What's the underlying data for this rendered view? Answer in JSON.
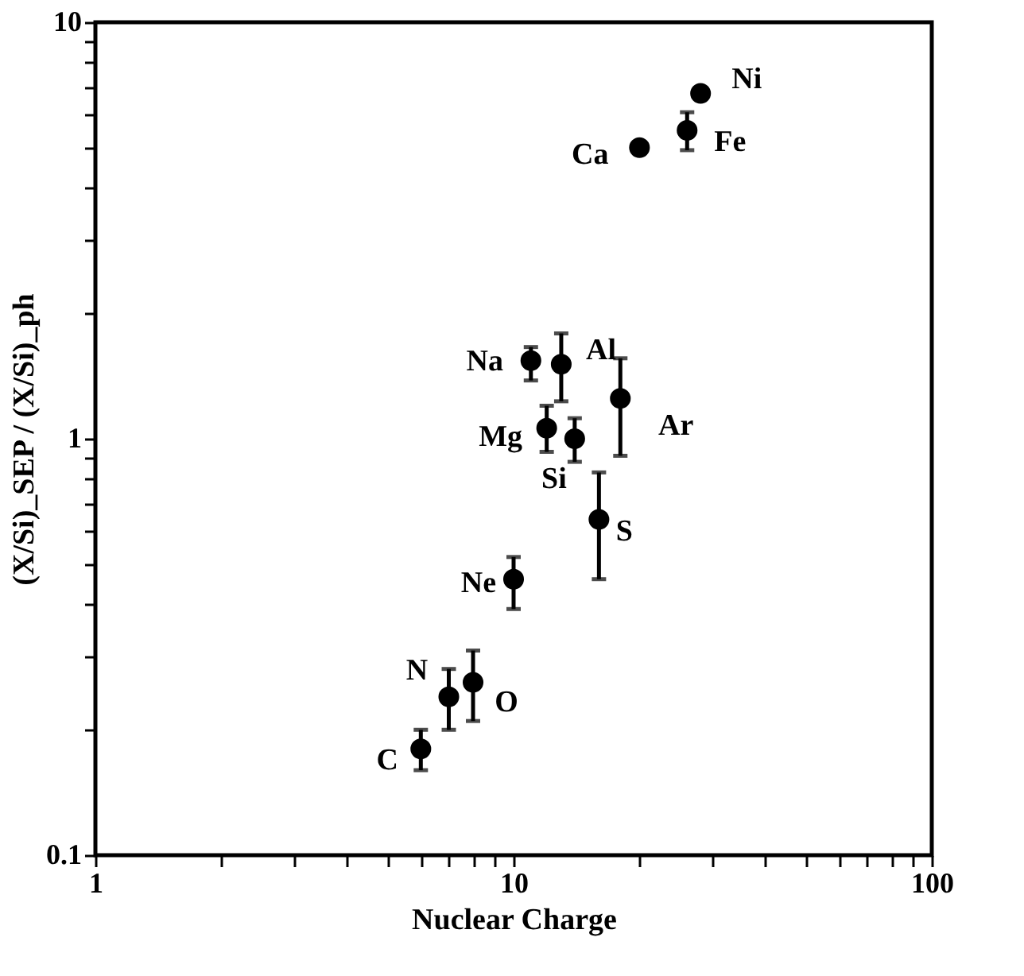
{
  "chart_data": {
    "type": "scatter",
    "xlabel": "Nuclear Charge",
    "ylabel": "(X/Si)_SEP / (X/Si)_ph",
    "log": "xy",
    "grid": false,
    "marker": "circle",
    "xlim": [
      1,
      100
    ],
    "ylim": [
      0.1,
      10
    ],
    "xticks": [
      1,
      {
        "value": 2,
        "label": null
      },
      {
        "value": 3,
        "label": null
      },
      {
        "value": 4,
        "label": null
      },
      {
        "value": 5,
        "label": null
      },
      {
        "value": 6,
        "label": null
      },
      {
        "value": 7,
        "label": null
      },
      {
        "value": 8,
        "label": null
      },
      {
        "value": 9,
        "label": null
      },
      10,
      {
        "value": 20,
        "label": null
      },
      {
        "value": 30,
        "label": null
      },
      {
        "value": 40,
        "label": null
      },
      {
        "value": 50,
        "label": null
      },
      {
        "value": 60,
        "label": null
      },
      {
        "value": 70,
        "label": null
      },
      {
        "value": 80,
        "label": null
      },
      {
        "value": 90,
        "label": null
      },
      100
    ],
    "yticks": [
      0.1,
      {
        "value": 0.2,
        "label": null
      },
      {
        "value": 0.3,
        "label": null
      },
      {
        "value": 0.4,
        "label": null
      },
      {
        "value": 0.5,
        "label": null
      },
      {
        "value": 0.6,
        "label": null
      },
      {
        "value": 0.7,
        "label": null
      },
      {
        "value": 0.8,
        "label": null
      },
      {
        "value": 0.9,
        "label": null
      },
      1,
      {
        "value": 2,
        "label": null
      },
      {
        "value": 3,
        "label": null
      },
      {
        "value": 4,
        "label": null
      },
      {
        "value": 5,
        "label": null
      },
      {
        "value": 6,
        "label": null
      },
      {
        "value": 7,
        "label": null
      },
      {
        "value": 8,
        "label": null
      },
      {
        "value": 9,
        "label": null
      },
      10
    ],
    "series": [
      {
        "color": "#000000",
        "x": [
          6,
          7,
          8,
          10,
          11,
          12,
          13,
          14,
          16,
          18,
          20,
          26,
          28
        ],
        "values": [
          0.18,
          0.24,
          0.26,
          0.46,
          1.54,
          1.06,
          1.51,
          1.0,
          0.64,
          1.25,
          5.0,
          5.5,
          6.75
        ],
        "errors": [
          [
            0.16,
            0.2
          ],
          [
            0.2,
            0.28
          ],
          [
            0.21,
            0.31
          ],
          [
            0.39,
            0.52
          ],
          [
            1.38,
            1.66
          ],
          [
            0.93,
            1.2
          ],
          [
            1.23,
            1.79
          ],
          [
            0.88,
            1.12
          ],
          [
            0.46,
            0.83
          ],
          [
            0.91,
            1.56
          ],
          null,
          [
            4.93,
            6.08
          ],
          null
        ]
      }
    ],
    "annotations": [
      {
        "text": "C",
        "x": 6,
        "y": 0.18
      },
      {
        "text": "N",
        "x": 7,
        "y": 0.24
      },
      {
        "text": "O",
        "x": 8,
        "y": 0.26
      },
      {
        "text": "Ne",
        "x": 10,
        "y": 0.46
      },
      {
        "text": "Na",
        "x": 11,
        "y": 1.54
      },
      {
        "text": "Mg",
        "x": 12,
        "y": 1.06
      },
      {
        "text": "Al",
        "x": 13,
        "y": 1.51
      },
      {
        "text": "Si",
        "x": 14,
        "y": 1.0
      },
      {
        "text": "S",
        "x": 16,
        "y": 0.64
      },
      {
        "text": "Ar",
        "x": 18,
        "y": 1.25
      },
      {
        "text": "Ca",
        "x": 20,
        "y": 5.0
      },
      {
        "text": "Fe",
        "x": 26,
        "y": 5.5
      },
      {
        "text": "Ni",
        "x": 28,
        "y": 6.75
      }
    ]
  }
}
